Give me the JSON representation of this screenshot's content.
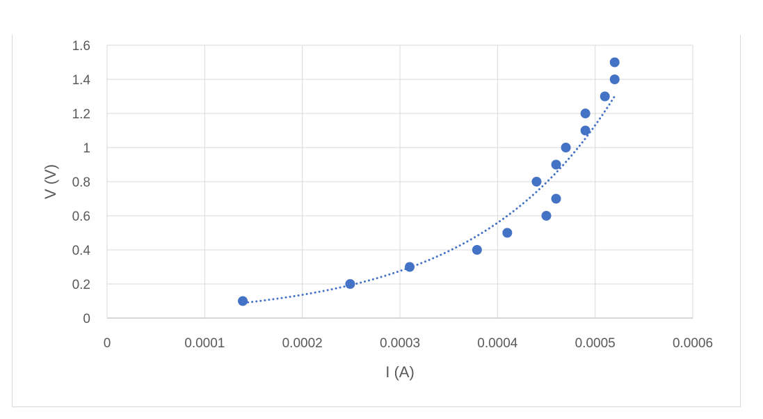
{
  "chart_data": {
    "type": "scatter",
    "title": "",
    "xlabel": "I (A)",
    "ylabel": "V (V)",
    "xlim": [
      0,
      0.0006
    ],
    "ylim": [
      0,
      1.6
    ],
    "x_ticks": [
      0,
      0.0001,
      0.0002,
      0.0003,
      0.0004,
      0.0005,
      0.0006
    ],
    "y_ticks": [
      0,
      0.2,
      0.4,
      0.6,
      0.8,
      1,
      1.2,
      1.4,
      1.6
    ],
    "x_tick_labels": [
      "0",
      "0.0001",
      "0.0002",
      "0.0003",
      "0.0004",
      "0.0005",
      "0.0006"
    ],
    "y_tick_labels": [
      "0",
      "0.2",
      "0.4",
      "0.6",
      "0.8",
      "1",
      "1.2",
      "1.4",
      "1.6"
    ],
    "grid": true,
    "legend": "none",
    "marker_color": "#4472c4",
    "series": [
      {
        "points": [
          {
            "x": 0.000139,
            "y": 0.1
          },
          {
            "x": 0.000249,
            "y": 0.2
          },
          {
            "x": 0.00031,
            "y": 0.3
          },
          {
            "x": 0.000379,
            "y": 0.4
          },
          {
            "x": 0.00041,
            "y": 0.5
          },
          {
            "x": 0.00045,
            "y": 0.6
          },
          {
            "x": 0.00046,
            "y": 0.7
          },
          {
            "x": 0.00044,
            "y": 0.8
          },
          {
            "x": 0.00046,
            "y": 0.9
          },
          {
            "x": 0.00047,
            "y": 1.0
          },
          {
            "x": 0.00049,
            "y": 1.1
          },
          {
            "x": 0.00049,
            "y": 1.2
          },
          {
            "x": 0.00051,
            "y": 1.3
          },
          {
            "x": 0.00052,
            "y": 1.4
          },
          {
            "x": 0.00052,
            "y": 1.5
          }
        ]
      }
    ],
    "trendline": {
      "type": "exponential",
      "style": "dotted",
      "color": "#4472c4",
      "x_range": [
        0.00014,
        0.00052
      ]
    }
  }
}
